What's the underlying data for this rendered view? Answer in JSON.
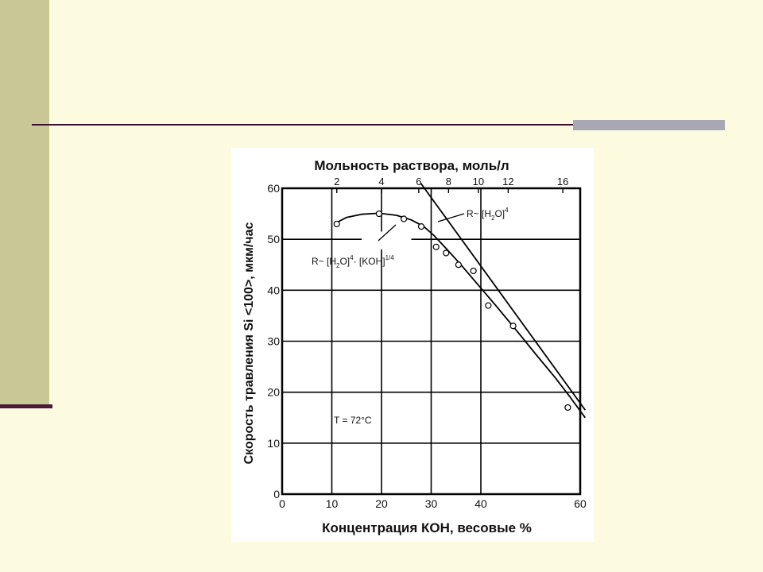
{
  "chart_data": {
    "type": "scatter",
    "title": "",
    "xlabel": "Концентрация КОН, весовые %",
    "ylabel": "Скорость травления Si <100>, мкм/час",
    "x2label": "Мольность раствора, моль/л",
    "xlim": [
      0,
      60
    ],
    "ylim": [
      0,
      60
    ],
    "x_ticks": [
      "0",
      "10",
      "20",
      "30",
      "40",
      "60"
    ],
    "x_tick_values": [
      0,
      10,
      20,
      30,
      40,
      60
    ],
    "y_ticks": [
      "0",
      "10",
      "20",
      "30",
      "40",
      "50",
      "60"
    ],
    "y_tick_values": [
      0,
      10,
      20,
      30,
      40,
      50,
      60
    ],
    "x2_ticks": [
      "2",
      "4",
      "6",
      "8",
      "10",
      "12",
      "16"
    ],
    "x2_tick_values": [
      11,
      20,
      27.5,
      33.5,
      39.5,
      45.5,
      56.5
    ],
    "grid": true,
    "points": [
      {
        "x": 11,
        "y": 53
      },
      {
        "x": 19.5,
        "y": 55
      },
      {
        "x": 24.5,
        "y": 54
      },
      {
        "x": 28,
        "y": 52.5
      },
      {
        "x": 31,
        "y": 48.5
      },
      {
        "x": 33,
        "y": 47.3
      },
      {
        "x": 35.5,
        "y": 45
      },
      {
        "x": 38.5,
        "y": 43.8
      },
      {
        "x": 41.5,
        "y": 37
      },
      {
        "x": 46.5,
        "y": 33
      },
      {
        "x": 57.5,
        "y": 17
      }
    ],
    "series": [
      {
        "name": "R~ [H2O]4",
        "x": [
          27.9,
          61
        ],
        "y": [
          61,
          16.5
        ]
      },
      {
        "name": "R~ [H2O]4 · [KOH]1/4",
        "x": [
          11,
          13,
          16,
          19.5,
          23,
          26,
          28.5,
          30.5,
          33,
          36,
          39.5,
          43,
          47,
          51,
          55,
          58,
          61
        ],
        "y": [
          53.3,
          54.3,
          54.9,
          55.1,
          54.7,
          53.8,
          52.5,
          50.8,
          48.2,
          45,
          41,
          37,
          32.3,
          27.5,
          22.8,
          19,
          15
        ]
      }
    ],
    "annotations": {
      "line1": {
        "prefix": "R~ [H",
        "sub": "2",
        "mid": "O]",
        "sup": "4",
        "suffix": ""
      },
      "line2": {
        "prefix": "R~ [H",
        "sub": "2",
        "mid": "O]",
        "sup": "4",
        "dot": "·",
        "kohText": " [KOH]",
        "kohSup": "1/4"
      },
      "temperature": "T = 72°C"
    }
  }
}
